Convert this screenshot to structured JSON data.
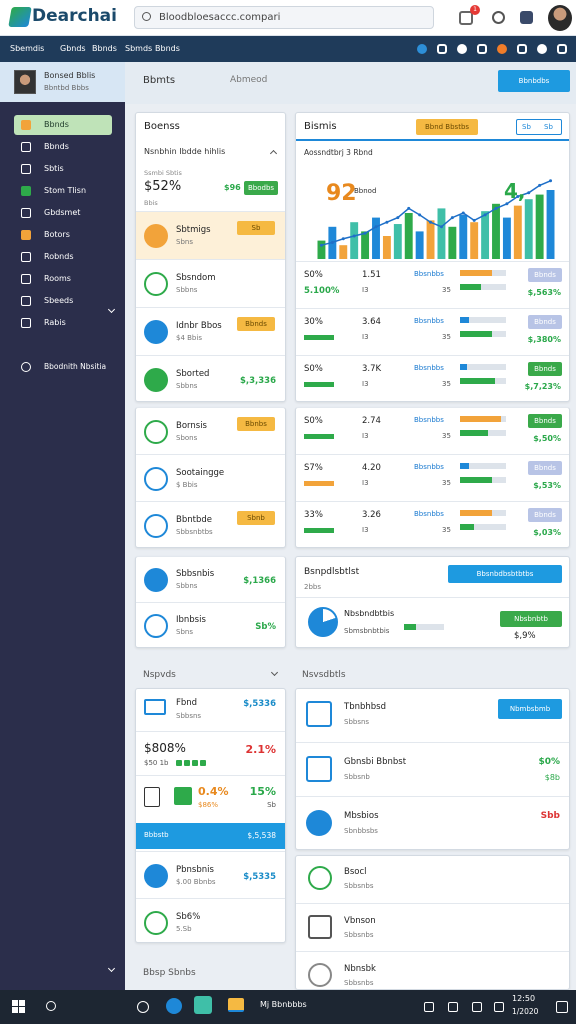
{
  "header": {
    "logo": "Dearchai",
    "search": "Bloodbloesaccc.compari",
    "badge": "1"
  },
  "nav": [
    "Sbemdis",
    "Gbnds",
    "Bbnds",
    "Sbmds",
    "Bbnds"
  ],
  "sidebar": {
    "name": "Bonsed Bblis",
    "sub": "Bbntbd Bbbs",
    "menu": [
      "Bbnds",
      "Bbnds",
      "Sbtis",
      "Stom Tlisn",
      "Gbdsmet",
      "Botors",
      "Robnds",
      "Rooms",
      "Sbeeds",
      "Rabis"
    ],
    "footer": "Bbodnith Nbsitia"
  },
  "topbar": {
    "title": "Bbmts",
    "filter": "Abmeod",
    "button": "Bbnbdbs"
  },
  "summary": {
    "title": "Boenss",
    "subtitle": "Nsnbhin Ibdde hihlis",
    "label": "Ssmbi Sbtis",
    "stat": "$52%",
    "change": "$96",
    "button": "Bbodbs",
    "note": "Bbis"
  },
  "summary_items": [
    {
      "title": "Sbtmigs",
      "sub": "Sbns",
      "badge": "Sb",
      "color": "#f2a33a"
    },
    {
      "title": "Sbsndom",
      "sub": "Sbbns",
      "color": "#2eaa4a"
    },
    {
      "title": "Idnbr Bbos",
      "sub": "$4 Bbis",
      "badge": "Bbnds",
      "color": "#1e88d8"
    },
    {
      "title": "Sborted",
      "sub": "Sbbns",
      "value": "$,3,336",
      "color": "#2eaa4a"
    }
  ],
  "list_items": [
    {
      "title": "Bornsis",
      "sub": "Sbons",
      "badge": "Bbnbs",
      "color": "#2eaa4a"
    },
    {
      "title": "Sootaingge",
      "sub": "$ Bbis",
      "color": "#1e88d8"
    },
    {
      "title": "Bbntbde",
      "sub": "Sbbsnbtbs",
      "badge": "Sbnb",
      "color": "#1e88d8"
    }
  ],
  "account_items": [
    {
      "title": "Sbbsnbis",
      "sub": "Sbbns",
      "value": "$,1366",
      "color": "#1e88d8"
    },
    {
      "title": "Ibnbsis",
      "sub": "Sbns",
      "value": "Sb%",
      "color": "#1e88d8"
    }
  ],
  "chart": {
    "title": "Bismis",
    "button": "Bbnd Bbstbs",
    "tabs": [
      "Sb",
      "Sb"
    ],
    "subtitle": "Aossndtbrj 3 Rbnd",
    "left_value": "92",
    "left_label": "Bbnod",
    "right_value": "4,",
    "ylim": [
      0,
      100
    ],
    "bar_colors": [
      "#2eaa4a",
      "#1e88d8",
      "#f2a33a",
      "#3fbfa8"
    ],
    "line_color": "#1e6fc8",
    "bars": [
      20,
      35,
      15,
      40,
      30,
      45,
      25,
      38,
      50,
      30,
      42,
      55,
      35,
      48,
      40,
      52,
      60,
      45,
      58,
      65,
      70,
      75
    ],
    "line": [
      15,
      18,
      22,
      25,
      28,
      35,
      40,
      45,
      55,
      48,
      40,
      35,
      45,
      50,
      42,
      48,
      55,
      60,
      68,
      72,
      80,
      85
    ]
  },
  "metric_rows": [
    {
      "pct": "S0%",
      "value": "1.51",
      "label": "Bbsnbbs",
      "change": "5.100%",
      "note": "I3",
      "count": "35",
      "badge": "Bbnds",
      "badge_color": "#b8c4e6",
      "amount": "$,563%",
      "bars": [
        70,
        45
      ],
      "bar_color": "#f2a33a"
    },
    {
      "pct": "30%",
      "value": "3.64",
      "label": "Bbsnbbs",
      "note": "I3",
      "count": "35",
      "badge": "Bbnds",
      "badge_color": "#b8c4e6",
      "amount": "$,380%",
      "bars": [
        20,
        70
      ],
      "bar_color": "#1e88d8"
    },
    {
      "pct": "S0%",
      "value": "3.7K",
      "label": "Bbsnbbs",
      "note": "I3",
      "count": "35",
      "badge": "Bbnds",
      "badge_color": "#3aa94a",
      "amount": "$,7,23%",
      "bars": [
        15,
        75
      ],
      "bar_color": "#1e88d8"
    },
    {
      "pct": "S0%",
      "value": "2.74",
      "label": "Bbsnbbs",
      "note": "I3",
      "count": "35",
      "badge": "Bbnds",
      "badge_color": "#3aa94a",
      "amount": "$,50%",
      "bars": [
        90,
        60
      ],
      "bar_color": "#f2a33a"
    },
    {
      "pct": "S7%",
      "value": "4.20",
      "label": "Bbsnbbs",
      "note": "I3",
      "count": "35",
      "badge": "Bbnds",
      "badge_color": "#b8c4e6",
      "amount": "$,53%",
      "bars": [
        20,
        70
      ],
      "bar_color": "#1e88d8"
    },
    {
      "pct": "33%",
      "value": "3.26",
      "label": "Bbsnbbs",
      "note": "I3",
      "count": "35",
      "badge": "Bbnds",
      "badge_color": "#b8c4e6",
      "amount": "$,03%",
      "bars": [
        70,
        30
      ],
      "bar_color": "#f2a33a"
    }
  ],
  "export": {
    "title": "Bsnpdlsbtlst",
    "sub": "2bbs",
    "button": "Bbsnbdbsbtbtbs",
    "item": "Nbsbndbtbis",
    "item_sub": "Sbmsbnbtbis",
    "action": "Nbsbnbtb",
    "value": "$,9%",
    "progress": 30
  },
  "left_section": "Nspvds",
  "wallet": {
    "top": {
      "title": "Fbnd",
      "sub": "Sbbsns",
      "value": "$,5336"
    },
    "stat": {
      "value": "$808%",
      "change": "2.1%",
      "sub": "$50 1b"
    },
    "pair": {
      "a": "0.4%",
      "a_sub": "$86%",
      "b": "15%",
      "b_sub": "Sb"
    },
    "strip": {
      "label": "Bbbstb",
      "value": "$,5,538"
    },
    "rows": [
      {
        "title": "Pbnsbnis",
        "sub": "$.00 Bbnbs",
        "value": "$,5335",
        "color": "#1e88d8"
      },
      {
        "title": "Sb6%",
        "sub": "5.Sb",
        "color": "#2eaa4a"
      }
    ]
  },
  "right_section": "Nsvsdbtls",
  "notices": [
    {
      "title": "Tbnbhbsd",
      "sub": "Sbbsns",
      "button": "Nbmbsbmb",
      "color": "#1e88d8"
    },
    {
      "title": "Gbnsbi Bbnbst",
      "sub": "Sbbsnb",
      "value": "$0%",
      "value2": "$8b",
      "color": "#1e88d8"
    },
    {
      "title": "Mbsbios",
      "sub": "Sbnbbsbs",
      "value": "Sbb",
      "color": "#1e88d8"
    }
  ],
  "more": [
    {
      "title": "Bsocl",
      "sub": "Sbbsnbs",
      "color": "#2eaa4a"
    },
    {
      "title": "Vbnson",
      "sub": "Sbbsnbs",
      "color": "#555"
    },
    {
      "title": "Nbnsbk",
      "sub": "Sbbsnbs",
      "color": "#888"
    }
  ],
  "footer_heading": "Bbsp Sbnbs",
  "taskbar": {
    "app": "Mj Bbnbbbs",
    "time": "12:50",
    "date": "1/2020"
  }
}
